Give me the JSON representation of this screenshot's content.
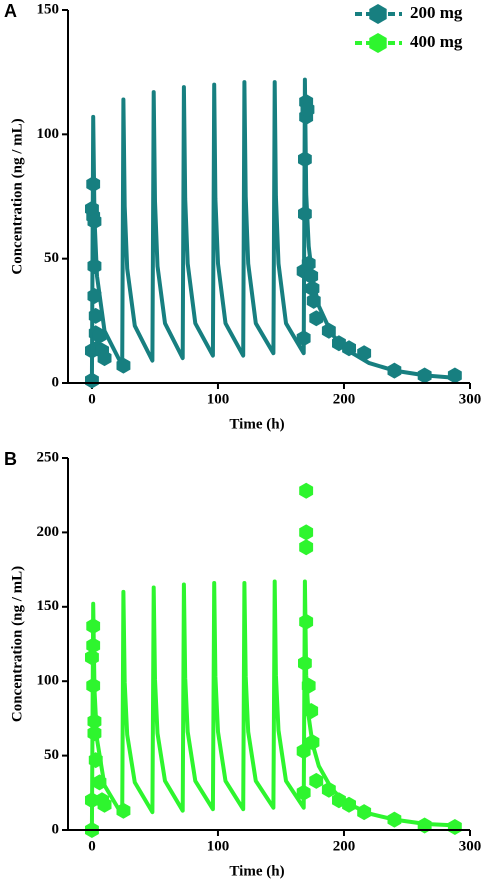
{
  "chart_data": [
    {
      "type": "line",
      "panel_label": "A",
      "x_label": "Time (h)",
      "y_label": "Concentration (ng / mL)",
      "xlim": [
        -19,
        300
      ],
      "xticks": [
        0,
        100,
        200,
        300
      ],
      "ylim": [
        0,
        150
      ],
      "yticks": [
        0,
        50,
        100,
        150
      ],
      "series": [
        {
          "name": "200 mg",
          "color": "#177f80",
          "x": [
            0,
            1,
            2,
            4,
            10,
            24,
            25,
            26,
            28,
            34,
            48,
            49,
            50,
            52,
            58,
            72,
            73,
            74,
            76,
            82,
            96,
            97,
            98,
            100,
            106,
            120,
            121,
            122,
            124,
            130,
            144,
            145,
            146,
            148,
            154,
            168,
            169,
            170,
            172,
            175,
            180,
            190,
            200,
            220,
            240,
            265,
            290
          ],
          "values": [
            0,
            107,
            66,
            43,
            21,
            7,
            114,
            71,
            46,
            23,
            9,
            117,
            73,
            47,
            24,
            10,
            119,
            74,
            48,
            24,
            11,
            120,
            74,
            48,
            24,
            11,
            121,
            75,
            48,
            24,
            12,
            121,
            75,
            48,
            24,
            12,
            122,
            76,
            55,
            42,
            31,
            20,
            14,
            8,
            5,
            3,
            2
          ],
          "observed_x": [
            0,
            0,
            0,
            1,
            1,
            2,
            2,
            2,
            3,
            3,
            4,
            6,
            8,
            10,
            25,
            168,
            168,
            169,
            169,
            170,
            170,
            171,
            172,
            174,
            175,
            176,
            178,
            188,
            196,
            204,
            216,
            240,
            264,
            288
          ],
          "observed_values": [
            1,
            13,
            70,
            80,
            67,
            65,
            47,
            35,
            27,
            20,
            14,
            19,
            13,
            10,
            7,
            18,
            45,
            68,
            90,
            107,
            113,
            110,
            48,
            43,
            38,
            33,
            26,
            21,
            16,
            14,
            12,
            5,
            3,
            3
          ]
        }
      ]
    },
    {
      "type": "line",
      "panel_label": "B",
      "x_label": "Time (h)",
      "y_label": "Concentration (ng / mL)",
      "xlim": [
        -19,
        300
      ],
      "xticks": [
        0,
        100,
        200,
        300
      ],
      "ylim": [
        0,
        250
      ],
      "yticks": [
        0,
        50,
        100,
        150,
        200,
        250
      ],
      "series": [
        {
          "name": "400 mg",
          "color": "#2ef52e",
          "x": [
            0,
            1,
            2,
            4,
            10,
            24,
            25,
            26,
            28,
            34,
            48,
            49,
            50,
            52,
            58,
            72,
            73,
            74,
            76,
            82,
            96,
            97,
            98,
            100,
            106,
            120,
            121,
            122,
            124,
            130,
            144,
            145,
            146,
            148,
            154,
            168,
            169,
            170,
            172,
            175,
            180,
            190,
            200,
            220,
            240,
            265,
            290
          ],
          "values": [
            0,
            152,
            94,
            61,
            30,
            10,
            160,
            99,
            64,
            32,
            12,
            163,
            101,
            65,
            33,
            13,
            165,
            102,
            66,
            33,
            14,
            166,
            103,
            66,
            33,
            14,
            166,
            103,
            66,
            33,
            15,
            167,
            104,
            67,
            33,
            15,
            167,
            104,
            76,
            58,
            43,
            28,
            19,
            11,
            7,
            4,
            3
          ],
          "observed_x": [
            0,
            0,
            0,
            1,
            1,
            1,
            2,
            2,
            3,
            6,
            8,
            10,
            25,
            168,
            168,
            169,
            170,
            170,
            170,
            170,
            172,
            174,
            175,
            178,
            188,
            196,
            204,
            216,
            240,
            264,
            288
          ],
          "observed_values": [
            0,
            20,
            116,
            137,
            124,
            97,
            73,
            65,
            47,
            32,
            20,
            17,
            13,
            25,
            53,
            112,
            140,
            200,
            190,
            228,
            97,
            80,
            59,
            33,
            27,
            20,
            17,
            12,
            7,
            3,
            2
          ]
        }
      ]
    }
  ]
}
